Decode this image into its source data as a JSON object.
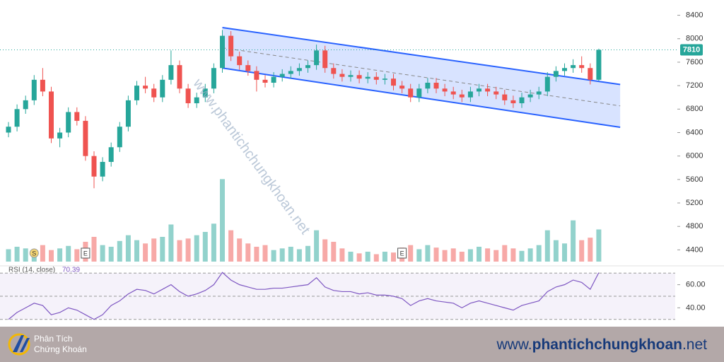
{
  "chart_data": {
    "type": "candlestick",
    "open": [
      6400,
      6500,
      6800,
      6950,
      7300,
      7100,
      6300,
      6400,
      6750,
      6600,
      6000,
      5650,
      5900,
      6150,
      6500,
      6950,
      7200,
      7150,
      7000,
      7300,
      7550,
      7150,
      6900,
      7000,
      7150,
      7500,
      8050,
      7700,
      7550,
      7450,
      7300,
      7250,
      7350,
      7400,
      7450,
      7500,
      7550,
      7800,
      7500,
      7400,
      7350,
      7380,
      7320,
      7350,
      7300,
      7320,
      7200,
      7150,
      7000,
      7150,
      7250,
      7150,
      7100,
      7050,
      7000,
      7100,
      7150,
      7100,
      7050,
      6950,
      6900,
      7000,
      7050,
      7100,
      7350,
      7450,
      7500,
      7550,
      7500,
      7300
    ],
    "high": [
      6580,
      6880,
      7030,
      7380,
      7500,
      7180,
      6480,
      6830,
      6830,
      6680,
      6080,
      5980,
      6230,
      6580,
      7030,
      7280,
      7350,
      7230,
      7380,
      7800,
      7630,
      7230,
      7080,
      7230,
      7580,
      8150,
      8130,
      7780,
      7630,
      7530,
      7380,
      7430,
      7480,
      7530,
      7580,
      7630,
      7900,
      7880,
      7580,
      7480,
      7460,
      7460,
      7430,
      7430,
      7400,
      7400,
      7280,
      7230,
      7230,
      7330,
      7330,
      7230,
      7180,
      7130,
      7180,
      7230,
      7230,
      7180,
      7130,
      7030,
      7080,
      7130,
      7180,
      7430,
      7530,
      7580,
      7650,
      7700,
      7580,
      7830
    ],
    "low": [
      6320,
      6420,
      6720,
      6870,
      7020,
      6220,
      6150,
      6320,
      6520,
      5920,
      5450,
      5570,
      5820,
      6070,
      6420,
      6870,
      7070,
      6920,
      6920,
      7220,
      7070,
      6820,
      6820,
      6920,
      7070,
      7420,
      7620,
      7470,
      7370,
      7100,
      7170,
      7170,
      7270,
      7320,
      7370,
      7420,
      7470,
      7420,
      7320,
      7270,
      7270,
      7240,
      7240,
      7220,
      7220,
      7120,
      7070,
      6920,
      6920,
      7070,
      7070,
      7020,
      6970,
      6920,
      6920,
      7020,
      7020,
      6970,
      6870,
      6820,
      6820,
      6920,
      6970,
      7020,
      7270,
      7370,
      7420,
      7420,
      7220,
      7280
    ],
    "close": [
      6500,
      6800,
      6950,
      7300,
      7100,
      6300,
      6400,
      6750,
      6600,
      6000,
      5650,
      5900,
      6150,
      6500,
      6950,
      7200,
      7150,
      7000,
      7300,
      7550,
      7150,
      6900,
      7000,
      7150,
      7500,
      8050,
      7700,
      7550,
      7450,
      7300,
      7250,
      7350,
      7400,
      7450,
      7500,
      7550,
      7800,
      7500,
      7400,
      7350,
      7380,
      7320,
      7350,
      7300,
      7320,
      7200,
      7150,
      7000,
      7150,
      7250,
      7150,
      7100,
      7050,
      7000,
      7100,
      7150,
      7100,
      7050,
      6950,
      6900,
      7000,
      7050,
      7100,
      7350,
      7450,
      7500,
      7550,
      7500,
      7300,
      7810
    ],
    "volume": [
      1.5,
      1.8,
      1.6,
      1.2,
      2.0,
      1.4,
      1.6,
      1.9,
      1.5,
      2.4,
      3.0,
      2.0,
      1.8,
      2.5,
      3.2,
      2.6,
      2.2,
      2.8,
      3.0,
      4.5,
      2.6,
      2.8,
      3.2,
      3.6,
      4.6,
      10.0,
      3.8,
      2.8,
      2.2,
      1.8,
      2.0,
      1.4,
      1.6,
      1.8,
      1.5,
      1.9,
      3.8,
      2.7,
      2.4,
      1.6,
      1.2,
      1.0,
      1.2,
      0.9,
      1.2,
      1.1,
      1.7,
      2.0,
      1.5,
      2.0,
      1.7,
      1.4,
      1.6,
      1.2,
      1.5,
      1.8,
      1.6,
      1.4,
      2.0,
      1.6,
      1.3,
      1.6,
      2.0,
      3.8,
      2.6,
      2.2,
      5.0,
      2.6,
      2.9,
      3.9
    ],
    "up_color": "#26a69a",
    "down_color": "#ef5350",
    "ylim": [
      4200,
      8600
    ],
    "yticks": [
      4400,
      4800,
      5200,
      5600,
      6000,
      6400,
      6800,
      7200,
      7600,
      8000,
      8400
    ],
    "volume_lim": [
      0,
      12
    ],
    "channel": {
      "x": [
        25,
        71.5
      ],
      "upper": [
        8190,
        7220
      ],
      "lower": [
        7500,
        6490
      ],
      "color": "#2962ff"
    },
    "events": [
      {
        "label": "S",
        "index": 3
      },
      {
        "label": "E",
        "index": 9
      },
      {
        "label": "E",
        "index": 46
      }
    ],
    "rsi_label": "RSI (14, close)",
    "rsi": [
      30,
      36,
      40,
      44,
      42,
      34,
      36,
      40,
      38,
      34,
      30,
      34,
      42,
      46,
      52,
      56,
      55,
      52,
      56,
      60,
      54,
      50,
      52,
      55,
      60,
      70.6,
      64,
      60,
      58,
      56,
      56,
      57,
      57,
      58,
      59,
      60,
      66,
      58,
      55,
      54,
      54,
      52,
      53,
      51,
      51,
      50,
      48,
      42,
      46,
      48,
      46,
      45,
      44,
      40,
      44,
      46,
      44,
      42,
      40,
      38,
      42,
      44,
      46,
      54,
      58,
      60,
      64,
      62,
      56,
      70.39
    ],
    "rsi_color": "#7e57c2",
    "rsi_lim": [
      28,
      72
    ],
    "rsi_levels": [
      30,
      50,
      70
    ],
    "rsi_ticks": [
      {
        "value": 40,
        "label": "40.00"
      },
      {
        "value": 60,
        "label": "60.00"
      }
    ]
  },
  "watermark": "www.phantichchungkhoan.net",
  "footer": {
    "brand": [
      "Phân Tích",
      "Chứng Khoán"
    ],
    "url": [
      "www.",
      "phantichchungkhoan",
      ".net"
    ]
  }
}
